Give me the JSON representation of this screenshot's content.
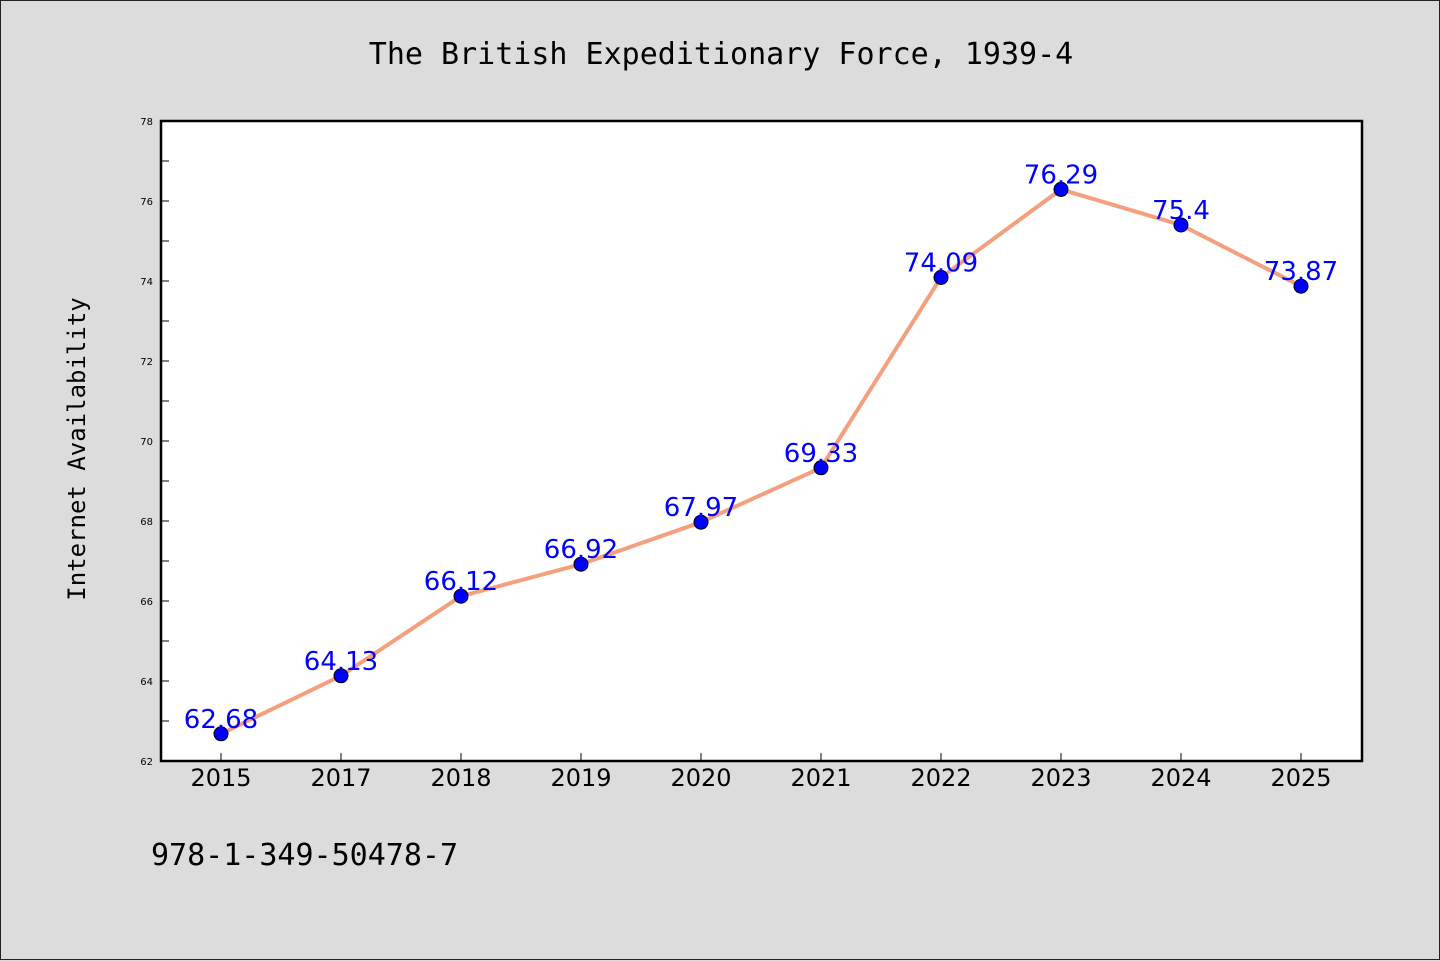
{
  "chart_data": {
    "type": "line",
    "title": "The British Expeditionary Force, 1939-4",
    "xlabel": "",
    "ylabel": "Internet Availability",
    "x": [
      "2015",
      "2017",
      "2018",
      "2019",
      "2020",
      "2021",
      "2022",
      "2023",
      "2024",
      "2025"
    ],
    "series": [
      {
        "values": [
          62.68,
          64.13,
          66.12,
          66.92,
          67.97,
          69.33,
          74.09,
          76.29,
          75.4,
          73.87
        ],
        "labels": [
          "62.68",
          "64.13",
          "66.12",
          "66.92",
          "67.97",
          "69.33",
          "74.09",
          "76.29",
          "75.4",
          "73.87"
        ],
        "line_color": "#f4a07e",
        "marker_color": "#0000ff",
        "label_color": "#0000ff"
      }
    ],
    "ylim": [
      62,
      78
    ],
    "yticks": [
      "62",
      "64",
      "66",
      "68",
      "70",
      "72",
      "74",
      "76",
      "78"
    ],
    "grid": false,
    "legend": "none"
  },
  "footer": {
    "text": "978-1-349-50478-7"
  }
}
